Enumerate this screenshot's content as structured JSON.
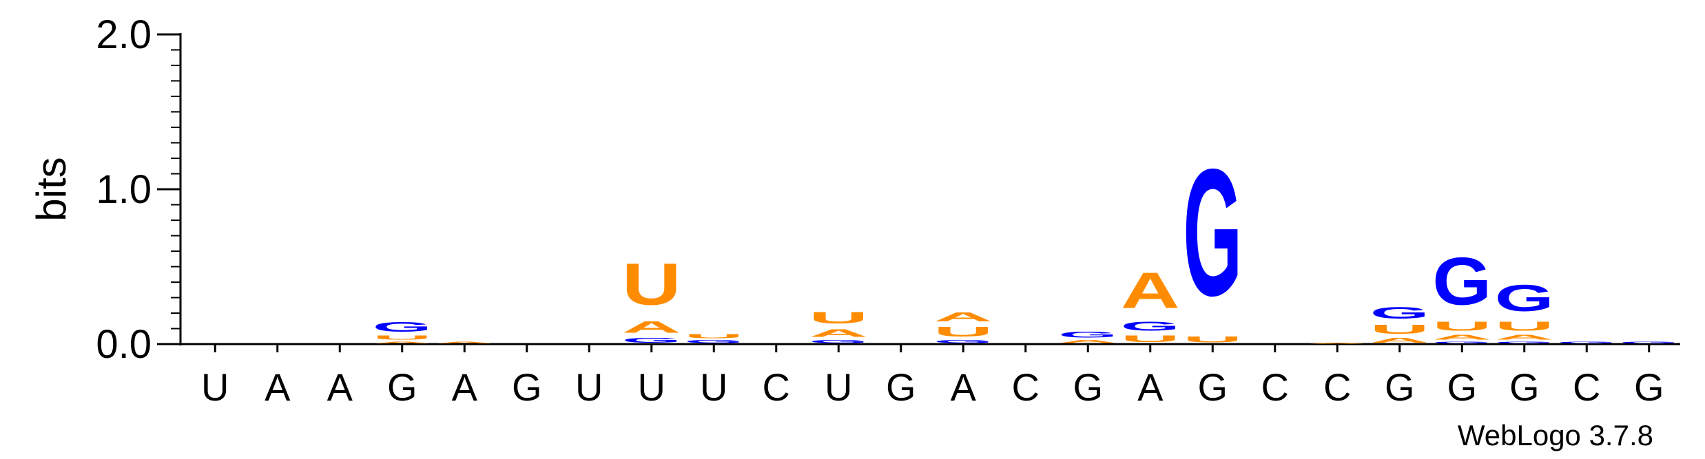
{
  "chart_data": {
    "type": "sequence-logo",
    "ylabel": "bits",
    "ylim": [
      0,
      2.0
    ],
    "yticks": [
      {
        "value": 2.0,
        "label": "2.0"
      },
      {
        "value": 1.0,
        "label": "1.0"
      },
      {
        "value": 0.0,
        "label": "0.0"
      }
    ],
    "x_labels": [
      "U",
      "A",
      "A",
      "G",
      "A",
      "G",
      "U",
      "U",
      "U",
      "C",
      "U",
      "G",
      "A",
      "C",
      "G",
      "A",
      "G",
      "C",
      "C",
      "G",
      "G",
      "G",
      "C",
      "G"
    ],
    "colors": {
      "G": "#0000ff",
      "A": "#ff8c00",
      "U": "#ff8c00",
      "C": "#0000ff"
    },
    "positions": [
      {
        "stack": []
      },
      {
        "stack": []
      },
      {
        "stack": []
      },
      {
        "stack": [
          {
            "letter": "A",
            "bits": 0.02
          },
          {
            "letter": "U",
            "bits": 0.04
          },
          {
            "letter": "G",
            "bits": 0.1
          }
        ]
      },
      {
        "stack": [
          {
            "letter": "A",
            "bits": 0.02
          }
        ]
      },
      {
        "stack": []
      },
      {
        "stack": []
      },
      {
        "stack": [
          {
            "letter": "G",
            "bits": 0.05
          },
          {
            "letter": "A",
            "bits": 0.12
          },
          {
            "letter": "U",
            "bits": 0.43
          }
        ]
      },
      {
        "stack": [
          {
            "letter": "G",
            "bits": 0.03
          },
          {
            "letter": "U",
            "bits": 0.04
          }
        ]
      },
      {
        "stack": []
      },
      {
        "stack": [
          {
            "letter": "G",
            "bits": 0.03
          },
          {
            "letter": "A",
            "bits": 0.08
          },
          {
            "letter": "U",
            "bits": 0.12
          }
        ]
      },
      {
        "stack": []
      },
      {
        "stack": [
          {
            "letter": "G",
            "bits": 0.03
          },
          {
            "letter": "U",
            "bits": 0.1
          },
          {
            "letter": "A",
            "bits": 0.09
          }
        ]
      },
      {
        "stack": []
      },
      {
        "stack": [
          {
            "letter": "A",
            "bits": 0.03
          },
          {
            "letter": "G",
            "bits": 0.06
          }
        ]
      },
      {
        "stack": [
          {
            "letter": "U",
            "bits": 0.07
          },
          {
            "letter": "G",
            "bits": 0.09
          },
          {
            "letter": "A",
            "bits": 0.37
          }
        ]
      },
      {
        "stack": [
          {
            "letter": "U",
            "bits": 0.06
          },
          {
            "letter": "G",
            "bits": 1.31
          }
        ]
      },
      {
        "stack": []
      },
      {
        "stack": [
          {
            "letter": "A",
            "bits": 0.01
          }
        ]
      },
      {
        "stack": [
          {
            "letter": "A",
            "bits": 0.05
          },
          {
            "letter": "U",
            "bits": 0.09
          },
          {
            "letter": "G",
            "bits": 0.12
          }
        ]
      },
      {
        "stack": [
          {
            "letter": "G",
            "bits": 0.02
          },
          {
            "letter": "A",
            "bits": 0.05
          },
          {
            "letter": "U",
            "bits": 0.09
          },
          {
            "letter": "G",
            "bits": 0.49
          }
        ]
      },
      {
        "stack": [
          {
            "letter": "G",
            "bits": 0.02
          },
          {
            "letter": "A",
            "bits": 0.05
          },
          {
            "letter": "U",
            "bits": 0.09
          },
          {
            "letter": "G",
            "bits": 0.27
          }
        ]
      },
      {
        "stack": [
          {
            "letter": "G",
            "bits": 0.02
          }
        ]
      },
      {
        "stack": [
          {
            "letter": "G",
            "bits": 0.02
          }
        ]
      }
    ]
  },
  "footer": {
    "credit": "WebLogo 3.7.8"
  }
}
